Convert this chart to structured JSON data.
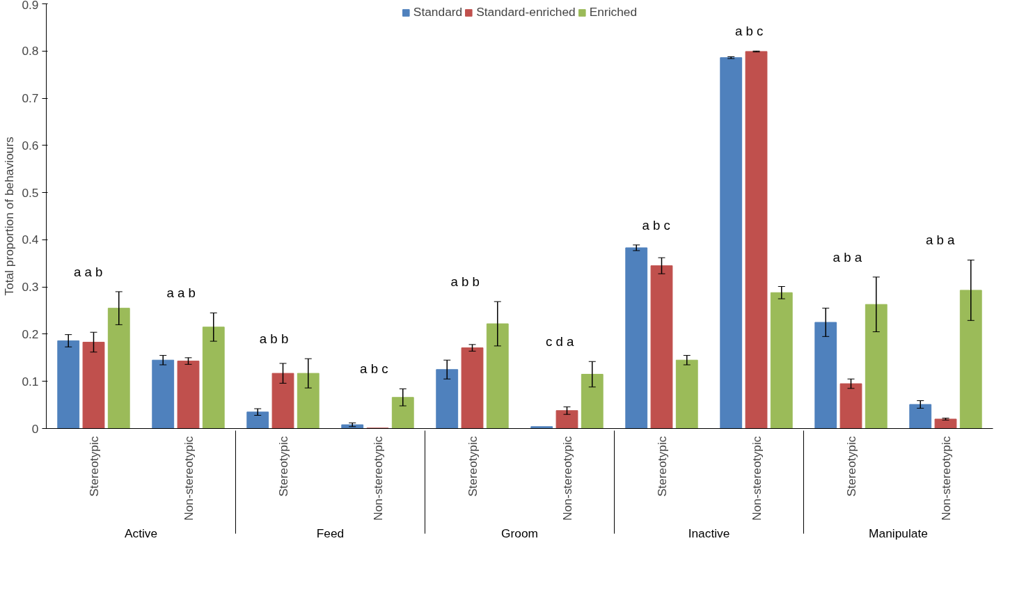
{
  "chart_data": {
    "type": "bar",
    "ylabel": "Total proportion of behaviours",
    "categories": [
      "Stereotypic",
      "Non-stereotypic",
      "Stereotypic",
      "Non-stereotypic",
      "Stereotypic",
      "Non-stereotypic",
      "Stereotypic",
      "Non-stereotypic",
      "Stereotypic",
      "Non-stereotypic"
    ],
    "series": [
      {
        "name": "Standard",
        "color": "#4f81bd",
        "values": [
          0.186,
          0.145,
          0.035,
          0.008,
          0.125,
          0.004,
          0.383,
          0.786,
          0.225,
          0.051
        ],
        "errors": [
          0.013,
          0.01,
          0.007,
          0.004,
          0.02,
          null,
          0.006,
          0.002,
          0.03,
          0.008
        ]
      },
      {
        "name": "Standard-enriched",
        "color": "#c0504d",
        "values": [
          0.183,
          0.143,
          0.117,
          0.001,
          0.171,
          0.038,
          0.345,
          0.799,
          0.095,
          0.02
        ],
        "errors": [
          0.021,
          0.007,
          0.021,
          null,
          0.007,
          0.008,
          0.017,
          0.001,
          0.01,
          0.002
        ]
      },
      {
        "name": "Enriched",
        "color": "#9bbb59",
        "values": [
          0.255,
          0.215,
          0.117,
          0.066,
          0.222,
          0.115,
          0.145,
          0.288,
          0.263,
          0.293
        ],
        "errors": [
          0.035,
          0.03,
          0.031,
          0.018,
          0.047,
          0.027,
          0.01,
          0.013,
          0.058,
          0.064
        ]
      }
    ],
    "ylim": [
      0,
      0.9
    ],
    "yticks": [
      0,
      0.1,
      0.2,
      0.3,
      0.4,
      0.5,
      0.6,
      0.7,
      0.8,
      0.9
    ],
    "grid": false,
    "legend": "top",
    "annotations": [
      "a a    b",
      "a   a   b",
      "a    b   b",
      "a b   c",
      "a   b   b",
      "c   d   a",
      "a   b  c",
      "a   b   c",
      "a  b  a",
      "a  b   a",
      "Active",
      "Feed",
      "Groom",
      "Inactive",
      "Manipulate"
    ]
  }
}
